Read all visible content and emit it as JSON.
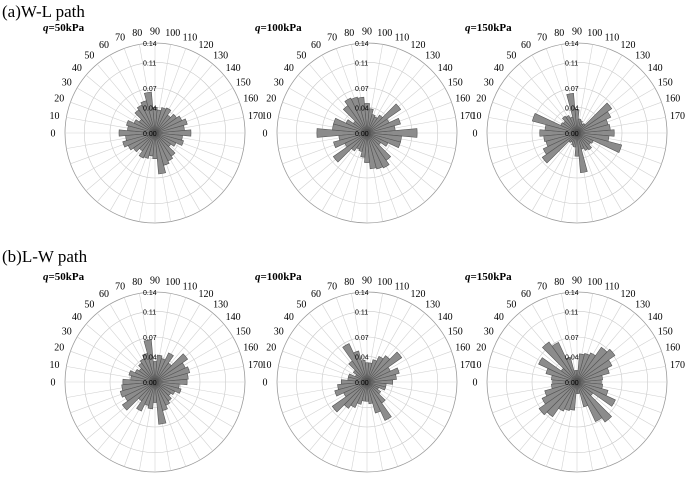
{
  "figure": {
    "row_labels": [
      "(a)W-L path",
      "(b)L-W path"
    ]
  },
  "chart_data": [
    {
      "type": "polar-bar",
      "row": 0,
      "col": 0,
      "title_var": "q",
      "title_value": "=50kPa",
      "angles": [
        0,
        10,
        20,
        30,
        40,
        50,
        60,
        70,
        80,
        90,
        100,
        110,
        120,
        130,
        140,
        150,
        160,
        170
      ],
      "angle_labels": [
        "0",
        "10",
        "20",
        "30",
        "40",
        "50",
        "60",
        "70",
        "80",
        "90",
        "100",
        "110",
        "120",
        "130",
        "140",
        "150",
        "160",
        "170"
      ],
      "radial_ticks": [
        0.0,
        0.04,
        0.07,
        0.11,
        0.14
      ],
      "radial_tick_labels": [
        "0.00",
        "0.04",
        "0.07",
        "0.11",
        "0.14"
      ],
      "rlim": [
        0,
        0.14
      ],
      "values": [
        0.056,
        0.046,
        0.052,
        0.046,
        0.041,
        0.034,
        0.043,
        0.041,
        0.036,
        0.04,
        0.064,
        0.052,
        0.048,
        0.044,
        0.03,
        0.036,
        0.046,
        0.043
      ]
    },
    {
      "type": "polar-bar",
      "row": 0,
      "col": 1,
      "title_var": "q",
      "title_value": "=100kPa",
      "angles": [
        0,
        10,
        20,
        30,
        40,
        50,
        60,
        70,
        80,
        90,
        100,
        110,
        120,
        130,
        140,
        150,
        160,
        170
      ],
      "angle_labels": [
        "0",
        "10",
        "20",
        "30",
        "40",
        "50",
        "60",
        "70",
        "80",
        "90",
        "100",
        "110",
        "120",
        "130",
        "140",
        "150",
        "160",
        "170"
      ],
      "radial_ticks": [
        0.0,
        0.04,
        0.07,
        0.11,
        0.14
      ],
      "radial_tick_labels": [
        "0.00",
        "0.04",
        "0.07",
        "0.11",
        "0.14"
      ],
      "rlim": [
        0,
        0.14
      ],
      "values": [
        0.078,
        0.044,
        0.054,
        0.038,
        0.064,
        0.034,
        0.028,
        0.03,
        0.038,
        0.046,
        0.056,
        0.058,
        0.06,
        0.052,
        0.026,
        0.036,
        0.054,
        0.054
      ]
    },
    {
      "type": "polar-bar",
      "row": 0,
      "col": 2,
      "title_var": "q",
      "title_value": "=150kPa",
      "angles": [
        0,
        10,
        20,
        30,
        40,
        50,
        60,
        70,
        80,
        90,
        100,
        110,
        120,
        130,
        140,
        150,
        160,
        170
      ],
      "angle_labels": [
        "0",
        "10",
        "20",
        "30",
        "40",
        "50",
        "60",
        "70",
        "80",
        "90",
        "100",
        "110",
        "120",
        "130",
        "140",
        "150",
        "160",
        "170"
      ],
      "radial_ticks": [
        0.0,
        0.04,
        0.07,
        0.11,
        0.14
      ],
      "radial_tick_labels": [
        "0.00",
        "0.04",
        "0.07",
        "0.11",
        "0.14"
      ],
      "rlim": [
        0,
        0.14
      ],
      "values": [
        0.058,
        0.052,
        0.05,
        0.058,
        0.066,
        0.018,
        0.016,
        0.02,
        0.022,
        0.036,
        0.062,
        0.026,
        0.03,
        0.032,
        0.026,
        0.028,
        0.072,
        0.05
      ]
    },
    {
      "type": "polar-bar",
      "row": 1,
      "col": 0,
      "title_var": "q",
      "title_value": "=50kPa",
      "angles": [
        0,
        10,
        20,
        30,
        40,
        50,
        60,
        70,
        80,
        90,
        100,
        110,
        120,
        130,
        140,
        150,
        160,
        170
      ],
      "angle_labels": [
        "0",
        "10",
        "20",
        "30",
        "40",
        "50",
        "60",
        "70",
        "80",
        "90",
        "100",
        "110",
        "120",
        "130",
        "140",
        "150",
        "160",
        "170"
      ],
      "radial_ticks": [
        0.0,
        0.04,
        0.07,
        0.11,
        0.14
      ],
      "radial_tick_labels": [
        "0.00",
        "0.04",
        "0.07",
        "0.11",
        "0.14"
      ],
      "rlim": [
        0,
        0.14
      ],
      "values": [
        0.05,
        0.052,
        0.056,
        0.052,
        0.062,
        0.036,
        0.05,
        0.038,
        0.042,
        0.032,
        0.066,
        0.046,
        0.04,
        0.036,
        0.03,
        0.034,
        0.042,
        0.038
      ]
    },
    {
      "type": "polar-bar",
      "row": 1,
      "col": 1,
      "title_var": "q",
      "title_value": "=100kPa",
      "angles": [
        0,
        10,
        20,
        30,
        40,
        50,
        60,
        70,
        80,
        90,
        100,
        110,
        120,
        130,
        140,
        150,
        160,
        170
      ],
      "angle_labels": [
        "0",
        "10",
        "20",
        "30",
        "40",
        "50",
        "60",
        "70",
        "80",
        "90",
        "100",
        "110",
        "120",
        "130",
        "140",
        "150",
        "160",
        "170"
      ],
      "radial_ticks": [
        0.0,
        0.04,
        0.07,
        0.11,
        0.14
      ],
      "radial_tick_labels": [
        "0.00",
        "0.04",
        "0.07",
        "0.11",
        "0.14"
      ],
      "rlim": [
        0,
        0.14
      ],
      "values": [
        0.04,
        0.046,
        0.052,
        0.04,
        0.066,
        0.05,
        0.044,
        0.036,
        0.03,
        0.03,
        0.034,
        0.05,
        0.066,
        0.04,
        0.026,
        0.02,
        0.03,
        0.03
      ]
    },
    {
      "type": "polar-bar",
      "row": 1,
      "col": 2,
      "title_var": "q",
      "title_value": "=150kPa",
      "angles": [
        0,
        10,
        20,
        30,
        40,
        50,
        60,
        70,
        80,
        90,
        100,
        110,
        120,
        130,
        140,
        150,
        160,
        170
      ],
      "angle_labels": [
        "0",
        "10",
        "20",
        "30",
        "40",
        "50",
        "60",
        "70",
        "80",
        "90",
        "100",
        "110",
        "120",
        "130",
        "140",
        "150",
        "160",
        "170"
      ],
      "radial_ticks": [
        0.0,
        0.04,
        0.07,
        0.11,
        0.14
      ],
      "radial_tick_labels": [
        "0.00",
        "0.04",
        "0.07",
        "0.11",
        "0.14"
      ],
      "rlim": [
        0,
        0.14
      ],
      "values": [
        0.038,
        0.04,
        0.052,
        0.06,
        0.072,
        0.066,
        0.05,
        0.046,
        0.044,
        0.018,
        0.018,
        0.04,
        0.068,
        0.076,
        0.03,
        0.066,
        0.05,
        0.04
      ]
    }
  ]
}
